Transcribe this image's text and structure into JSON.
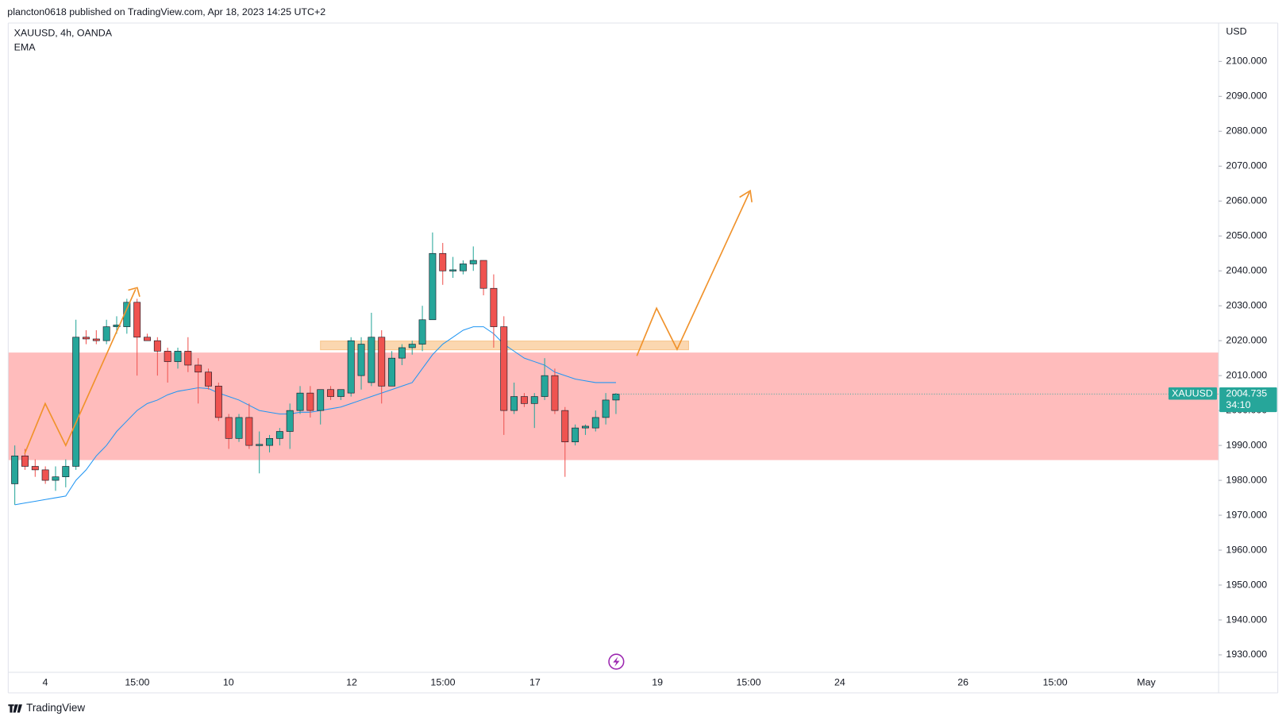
{
  "header": "plancton0618 published on TradingView.com, Apr 18, 2023 14:25 UTC+2",
  "footer": "TradingView",
  "chart_data": {
    "type": "candlestick",
    "title": "XAUUSD, 4h, OANDA",
    "indicator": "EMA",
    "currency": "USD",
    "symbol": "XAUUSD",
    "countdown": "34:10",
    "up_color": "#26a69a",
    "down_color": "#ef5350",
    "ema_color": "#2196f3",
    "open": [
      1979,
      1987,
      1984,
      1983,
      1980,
      1981,
      1984,
      2021,
      2020.5,
      2020,
      2024,
      2024,
      2031,
      2021,
      2020,
      2017,
      2014,
      2017,
      2013,
      2011,
      2007,
      1998,
      1992,
      1998,
      1990,
      1990,
      1992,
      1994,
      2000,
      2005,
      2000,
      2006,
      2004,
      2005,
      2010,
      2008,
      2021,
      2007,
      2015,
      2018,
      2019,
      2026,
      2045,
      2040,
      2040,
      2042,
      2043,
      2035,
      2024,
      2000,
      2004,
      2002,
      2004,
      2010,
      2000,
      1991,
      1995,
      1995,
      1998,
      2003
    ],
    "high": [
      1990,
      1989,
      1986,
      1984,
      1984,
      1986,
      2026,
      2023,
      2023,
      2026,
      2027,
      2032,
      2032,
      2022,
      2021,
      2018,
      2018,
      2021,
      2015,
      2012,
      2008,
      1999,
      1999,
      2002,
      1994,
      1993,
      1995,
      2002,
      2007,
      2007,
      2006,
      2007,
      2006,
      2021,
      2021,
      2028,
      2023,
      2017,
      2019,
      2020,
      2030,
      2051,
      2048,
      2044,
      2043,
      2047,
      2043,
      2039,
      2027,
      2008,
      2005,
      2005,
      2015,
      2012,
      2001,
      1996,
      1996,
      2000,
      2005,
      2005
    ],
    "low": [
      1973,
      1983,
      1981,
      1979,
      1977,
      1978,
      1983,
      2019,
      2019,
      2019,
      2022,
      2022,
      2010,
      2020,
      2010,
      2008,
      2012,
      2011,
      2002,
      2006,
      1997,
      1989,
      1991,
      1989,
      1982,
      1988,
      1990,
      1989,
      1999,
      1998,
      1996,
      2003,
      2003,
      2004,
      2006,
      2007,
      2002,
      2007,
      2013,
      2016,
      2017,
      2026,
      2036,
      2038,
      2039,
      2040,
      2033,
      2018,
      1993,
      1999,
      2001,
      1995,
      2003,
      1999,
      1981,
      1990,
      1993,
      1994,
      1996,
      1999
    ],
    "close": [
      1987,
      1984,
      1983,
      1980,
      1981,
      1984,
      2021,
      2020.5,
      2020,
      2024,
      2024.5,
      2031,
      2021,
      2020,
      2017,
      2014,
      2017,
      2013,
      2011,
      2007,
      1998,
      1992,
      1998,
      1990,
      1990.3,
      1992,
      1994,
      2000,
      2005,
      2000,
      2006,
      2004,
      2006,
      2020,
      2019,
      2021,
      2007,
      2015,
      2018,
      2019,
      2026,
      2045,
      2040,
      2040.3,
      2042,
      2043,
      2035,
      2024,
      2000,
      2004,
      2002,
      2004,
      2010,
      2000,
      1991,
      1995,
      1995.5,
      1998,
      2003,
      2004.735
    ],
    "ema": [
      1973,
      1973.5,
      1974,
      1974.5,
      1975,
      1975.5,
      1980,
      1983,
      1987,
      1990,
      1994,
      1997,
      2000,
      2002,
      2003,
      2004.5,
      2005.5,
      2006,
      2006.5,
      2006.3,
      2005,
      2004,
      2003,
      2001.5,
      2000,
      1999.5,
      1999,
      1999,
      1999.5,
      1999.5,
      2000,
      2000.5,
      2001,
      2002,
      2003,
      2004,
      2005,
      2006,
      2007,
      2008,
      2012,
      2016,
      2019,
      2021,
      2023,
      2024,
      2024,
      2022,
      2019,
      2017,
      2015,
      2014,
      2013,
      2011,
      2010,
      2009,
      2008.5,
      2008,
      2008,
      2008
    ],
    "zones": [
      {
        "low": 1985.8,
        "high": 2016.6,
        "color": "#ffbcbc"
      },
      {
        "low": 2017.4,
        "high": 2019.9,
        "color": "#fbd7b0"
      }
    ],
    "xticks": [
      "4",
      "15:00",
      "10",
      "12",
      "15:00",
      "17",
      "19",
      "15:00",
      "24",
      "26",
      "15:00",
      "May"
    ],
    "ylim": [
      1925,
      2111
    ],
    "yticks": [
      {
        "value": 1930,
        "label": "1930.000"
      },
      {
        "value": 1940,
        "label": "1940.000"
      },
      {
        "value": 1950,
        "label": "1950.000"
      },
      {
        "value": 1960,
        "label": "1960.000"
      },
      {
        "value": 1970,
        "label": "1970.000"
      },
      {
        "value": 1980,
        "label": "1980.000"
      },
      {
        "value": 1990,
        "label": "1990.000"
      },
      {
        "value": 2000,
        "label": "2000.000"
      },
      {
        "value": 2010,
        "label": "2010.000"
      },
      {
        "value": 2020,
        "label": "2020.000"
      },
      {
        "value": 2030,
        "label": "2030.000"
      },
      {
        "value": 2040,
        "label": "2040.000"
      },
      {
        "value": 2050,
        "label": "2050.000"
      },
      {
        "value": 2060,
        "label": "2060.000"
      },
      {
        "value": 2070,
        "label": "2070.000"
      },
      {
        "value": 2080,
        "label": "2080.000"
      },
      {
        "value": 2090,
        "label": "2090.000"
      },
      {
        "value": 2100,
        "label": "2100.000"
      }
    ]
  }
}
